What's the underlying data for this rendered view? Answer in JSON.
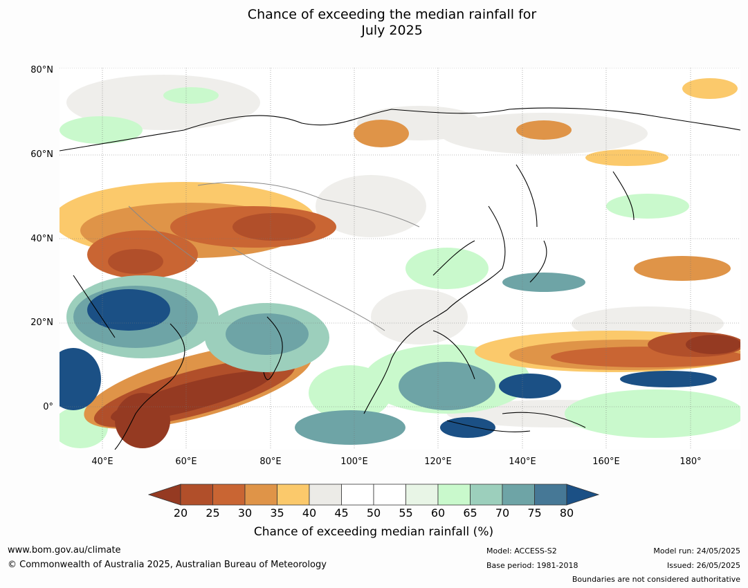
{
  "title_line1": "Chance of exceeding the median rainfall for",
  "title_line2": "July 2025",
  "map": {
    "lat_labels": [
      "80°N",
      "60°N",
      "40°N",
      "20°N",
      "0°"
    ],
    "lon_labels": [
      "40°E",
      "60°E",
      "80°E",
      "100°E",
      "120°E",
      "140°E",
      "160°E",
      "180°"
    ],
    "region": {
      "lon_range": [
        30,
        192
      ],
      "lat_range": [
        -10,
        80
      ]
    },
    "colors": {
      "very_dry": "#953a22",
      "dry_25": "#b14f2a",
      "dry_30": "#c96533",
      "dry_35": "#df9448",
      "dry_40": "#fbc96b",
      "neutral_45": "#ecebe7",
      "neutral_50": "#ffffff",
      "wet_60": "#e8f5e6",
      "wet_65": "#c9f9cc",
      "wet_70": "#9ccfbc",
      "wet_75": "#6ea4a6",
      "wet_80": "#467896",
      "very_wet": "#1b5085"
    }
  },
  "colorbar": {
    "ticks": [
      "20",
      "25",
      "30",
      "35",
      "40",
      "45",
      "50",
      "55",
      "60",
      "65",
      "70",
      "75",
      "80"
    ],
    "colors": [
      "#953a22",
      "#b14f2a",
      "#c96533",
      "#df9448",
      "#fbc96b",
      "#ecebe7",
      "#ffffff",
      "#ffffff",
      "#e8f5e6",
      "#c9f9cc",
      "#9ccfbc",
      "#6ea4a6",
      "#467896",
      "#1b5085"
    ],
    "label": "Chance of exceeding median rainfall (%)"
  },
  "footer": {
    "url": "www.bom.gov.au/climate",
    "copyright": "© Commonwealth of Australia 2025, Australian Bureau of Meteorology",
    "model": "Model: ACCESS-S2",
    "base_period": "Base period: 1981-2018",
    "model_run": "Model run: 24/05/2025",
    "issued": "Issued: 26/05/2025",
    "disclaimer": "Boundaries are not considered authoritative"
  }
}
